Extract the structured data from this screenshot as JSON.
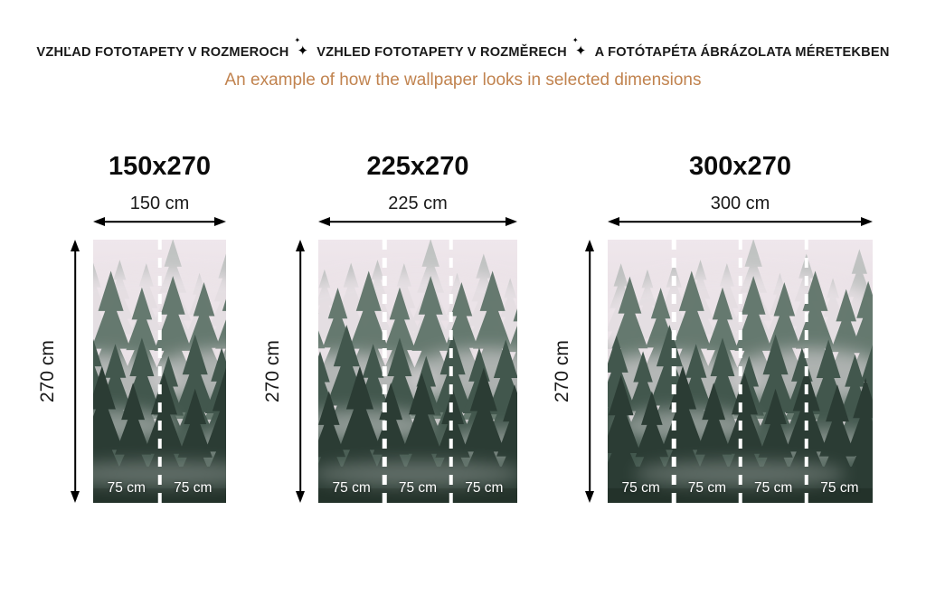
{
  "header": {
    "line1_segments": [
      "VZHĽAD FOTOTAPETY V ROZMEROCH",
      "VZHLED FOTOTAPETY V ROZMĚRECH",
      "A FOTÓTAPÉTA ÁBRÁZOLATA MÉRETEKBEN"
    ],
    "sparkle_glyph": "✦",
    "subtitle": "An example of how the wallpaper looks in selected dimensions",
    "subtitle_color": "#c1834f",
    "title_color": "#1a1a1a"
  },
  "panels": [
    {
      "title": "150x270",
      "width_label": "150 cm",
      "height_label": "270 cm",
      "strip_labels": [
        "75 cm",
        "75 cm"
      ]
    },
    {
      "title": "225x270",
      "width_label": "225 cm",
      "height_label": "270 cm",
      "strip_labels": [
        "75 cm",
        "75 cm",
        "75 cm"
      ]
    },
    {
      "title": "300x270",
      "width_label": "300 cm",
      "height_label": "270 cm",
      "strip_labels": [
        "75 cm",
        "75 cm",
        "75 cm",
        "75 cm"
      ]
    }
  ],
  "artwork": {
    "name": "foggy-pine-forest-wallpaper",
    "divider_color": "#ffffff",
    "label_color": "#ffffff",
    "palette": {
      "fog_top": "#efe7ec",
      "fog_mid": "#e9e1e6",
      "tree_far": "#8a9a92",
      "tree_mid": "#5f7469",
      "tree_near": "#42574d",
      "tree_dark": "#2b3c34"
    }
  }
}
